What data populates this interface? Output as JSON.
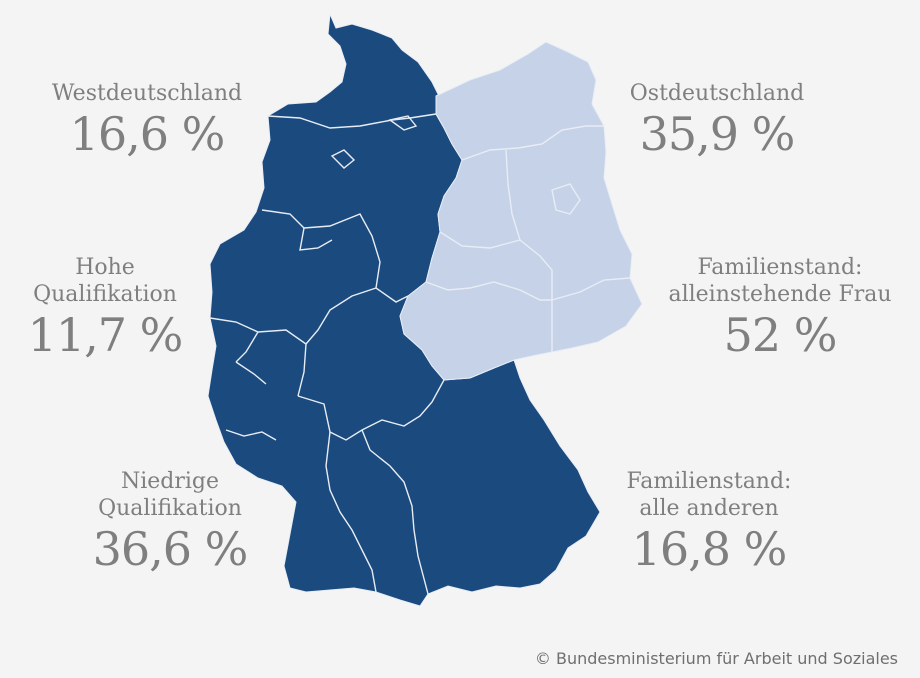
{
  "colors": {
    "west_region": "#1a4a7e",
    "east_region": "#c5d2e8",
    "border_line": "#e8edf5",
    "text_gray": "#7f7f7f",
    "background": "#f4f4f4"
  },
  "stats": {
    "west": {
      "label": "Westdeutschland",
      "value": "16,6 %"
    },
    "east": {
      "label": "Ostdeutschland",
      "value": "35,9 %"
    },
    "high_qual": {
      "label_line1": "Hohe",
      "label_line2": "Qualifikation",
      "value": "11,7 %"
    },
    "single_woman": {
      "label_line1": "Familienstand:",
      "label_line2": "alleinstehende Frau",
      "value": "52 %"
    },
    "low_qual": {
      "label_line1": "Niedrige",
      "label_line2": "Qualifikation",
      "value": "36,6 %"
    },
    "others": {
      "label_line1": "Familienstand:",
      "label_line2": "alle anderen",
      "value": "16,8 %"
    }
  },
  "map": {
    "west_label": "Westdeutschland",
    "east_label": "Ostdeutschland"
  },
  "copyright": "© Bundesministerium für Arbeit und Soziales"
}
